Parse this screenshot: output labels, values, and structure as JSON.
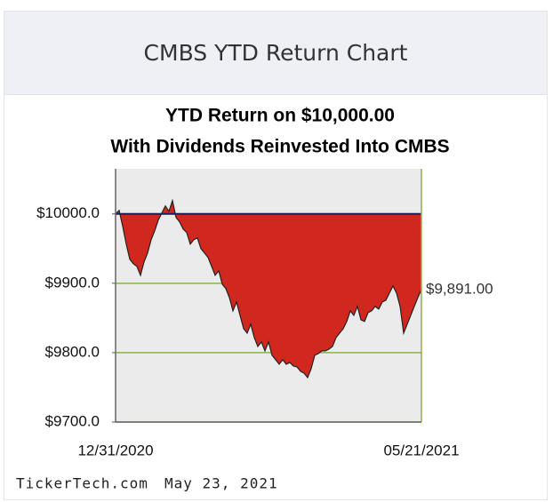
{
  "header": {
    "title": "CMBS YTD Return Chart"
  },
  "chart_data": {
    "type": "area",
    "title": "YTD Return on $10,000.00",
    "subtitle": "With Dividends Reinvested Into CMBS",
    "categories": [
      "12/31/2020",
      null,
      null,
      null,
      null,
      null,
      null,
      null,
      null,
      null,
      null,
      null,
      null,
      null,
      null,
      null,
      null,
      null,
      null,
      null,
      null,
      null,
      null,
      null,
      null,
      null,
      null,
      null,
      null,
      null,
      null,
      null,
      null,
      null,
      null,
      null,
      null,
      null,
      null,
      null,
      null,
      null,
      null,
      null,
      null,
      null,
      null,
      null,
      null,
      null,
      null,
      null,
      null,
      null,
      null,
      null,
      null,
      null,
      null,
      null,
      null,
      null,
      null,
      null,
      null,
      null,
      null,
      null,
      null,
      null,
      null,
      null,
      null,
      null,
      null,
      null,
      null,
      null,
      null,
      null,
      null,
      null,
      null,
      null,
      null,
      null,
      "05/21/2021"
    ],
    "values": [
      10000,
      10005.1,
      9982.1,
      9956.4,
      9934.6,
      9928.2,
      9924.4,
      9911.5,
      9930.8,
      9943.6,
      9962.8,
      9975.6,
      9991,
      10001.3,
      10011.5,
      10003.8,
      10019.2,
      9994.9,
      9988.5,
      9978.2,
      9973.1,
      9956.4,
      9962.8,
      9965.4,
      9950,
      9943.6,
      9937.2,
      9924.4,
      9911.5,
      9917.9,
      9898.7,
      9892.3,
      9879.5,
      9860.3,
      9873.1,
      9853.8,
      9834.6,
      9828.2,
      9841,
      9821.8,
      9809,
      9815.4,
      9802.6,
      9815.4,
      9796.2,
      9789.8,
      9783.3,
      9789.8,
      9783.3,
      9785.9,
      9780.8,
      9779.5,
      9773.1,
      9770.5,
      9764.1,
      9776.9,
      9796.2,
      9798.7,
      9802.6,
      9802.6,
      9805.1,
      9809,
      9821.8,
      9828.2,
      9834.6,
      9844.9,
      9860.3,
      9853.8,
      9866.7,
      9847.4,
      9844.9,
      9857.7,
      9860.3,
      9866.7,
      9862.8,
      9873.1,
      9875.6,
      9885.9,
      9896.2,
      9885.9,
      9866.7,
      9828.2,
      9841,
      9853.8,
      9866.7,
      9879.5,
      9891
    ],
    "value_labels": [
      null,
      null,
      null,
      null,
      null,
      null,
      null,
      null,
      null,
      null,
      null,
      null,
      null,
      null,
      null,
      null,
      null,
      null,
      null,
      null,
      null,
      null,
      null,
      null,
      null,
      null,
      null,
      null,
      null,
      null,
      null,
      null,
      null,
      null,
      null,
      null,
      null,
      null,
      null,
      null,
      null,
      null,
      null,
      null,
      null,
      null,
      null,
      null,
      null,
      null,
      null,
      null,
      null,
      null,
      null,
      null,
      null,
      null,
      null,
      null,
      null,
      null,
      null,
      null,
      null,
      null,
      null,
      null,
      null,
      null,
      null,
      null,
      null,
      null,
      null,
      null,
      null,
      null,
      null,
      null,
      null,
      null,
      null,
      null,
      null,
      null,
      "$9,891.00"
    ],
    "color": "#d0281e",
    "baseline": 10000,
    "baseline_color": "#1a1f5c",
    "grid_color": "#8db050",
    "ylim": [
      9700,
      10065
    ],
    "yticks": [
      {
        "value": 9700,
        "label": "$9700.0"
      },
      {
        "value": 9800,
        "label": "$9800.0"
      },
      {
        "value": 9900,
        "label": "$9900.0"
      },
      {
        "value": 10000,
        "label": "$10000.0"
      }
    ],
    "grid": true
  },
  "footer": {
    "source": "TickerTech.com",
    "date": "May 23, 2021"
  }
}
